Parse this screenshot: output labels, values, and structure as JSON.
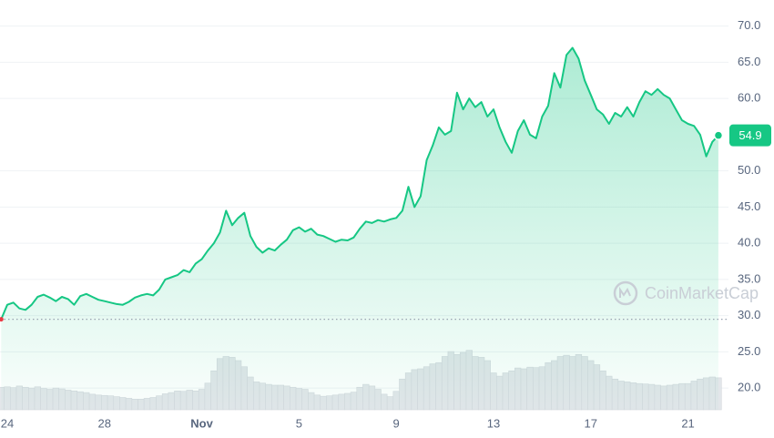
{
  "chart_data": {
    "type": "line",
    "watermark": "CoinMarketCap",
    "categories": [
      null,
      "24",
      null,
      null,
      null,
      null,
      null,
      null,
      null,
      null,
      null,
      null,
      null,
      null,
      null,
      null,
      null,
      "28",
      null,
      null,
      null,
      null,
      null,
      null,
      null,
      null,
      null,
      null,
      null,
      null,
      null,
      null,
      null,
      "Nov",
      null,
      null,
      null,
      null,
      null,
      null,
      null,
      null,
      null,
      null,
      null,
      null,
      null,
      null,
      null,
      "5",
      null,
      null,
      null,
      null,
      null,
      null,
      null,
      null,
      null,
      null,
      null,
      null,
      null,
      null,
      null,
      "9",
      null,
      null,
      null,
      null,
      null,
      null,
      null,
      null,
      null,
      null,
      null,
      null,
      null,
      null,
      null,
      "13",
      null,
      null,
      null,
      null,
      null,
      null,
      null,
      null,
      null,
      null,
      null,
      null,
      null,
      null,
      null,
      "17",
      null,
      null,
      null,
      null,
      null,
      null,
      null,
      null,
      null,
      null,
      null,
      null,
      null,
      null,
      null,
      "21",
      null,
      null,
      null,
      null,
      null
    ],
    "series": [
      {
        "color": "#16c784",
        "values": [
          29.5,
          31.5,
          31.8,
          31.0,
          30.8,
          31.5,
          32.6,
          32.9,
          32.5,
          32.0,
          32.6,
          32.3,
          31.5,
          32.7,
          33.0,
          32.6,
          32.2,
          32.0,
          31.8,
          31.6,
          31.5,
          31.9,
          32.5,
          32.8,
          33.0,
          32.8,
          33.6,
          35.0,
          35.3,
          35.6,
          36.3,
          36.0,
          37.2,
          37.8,
          39.0,
          40.0,
          41.5,
          44.5,
          42.5,
          43.5,
          44.2,
          41.0,
          39.5,
          38.7,
          39.3,
          39.0,
          39.8,
          40.5,
          41.8,
          42.2,
          41.6,
          42.0,
          41.2,
          41.0,
          40.6,
          40.2,
          40.5,
          40.4,
          40.8,
          42.0,
          43.0,
          42.8,
          43.2,
          43.0,
          43.3,
          43.5,
          44.5,
          47.8,
          45.0,
          46.5,
          51.5,
          53.5,
          56.0,
          55.0,
          55.5,
          60.8,
          58.5,
          60.0,
          58.8,
          59.5,
          57.5,
          58.5,
          56.0,
          54.0,
          52.5,
          55.5,
          57.0,
          55.0,
          54.5,
          57.5,
          59.0,
          63.5,
          61.5,
          66.0,
          67.0,
          65.5,
          62.5,
          60.5,
          58.5,
          57.8,
          56.5,
          58.0,
          57.5,
          58.8,
          57.5,
          59.5,
          61.0,
          60.5,
          61.3,
          60.5,
          60.0,
          58.5,
          57.0,
          56.5,
          56.2,
          55.0,
          52.0,
          54.0,
          54.9
        ]
      },
      {
        "type": "bar",
        "axis": "y2",
        "color": "#e3e6ea",
        "values": [
          5.5,
          5.6,
          5.4,
          5.8,
          5.5,
          5.3,
          5.6,
          5.2,
          5.0,
          5.3,
          5.1,
          4.8,
          4.6,
          4.4,
          4.2,
          3.8,
          3.6,
          3.5,
          3.4,
          3.2,
          3.0,
          2.8,
          2.6,
          2.6,
          2.8,
          3.0,
          3.4,
          3.9,
          4.2,
          4.6,
          4.5,
          4.8,
          4.6,
          5.0,
          6.5,
          9.5,
          12.5,
          13.0,
          12.8,
          12.0,
          10.5,
          8.0,
          6.8,
          6.5,
          6.2,
          6.0,
          6.0,
          5.8,
          5.5,
          5.2,
          5.0,
          4.2,
          3.6,
          3.3,
          3.4,
          3.6,
          3.8,
          4.0,
          4.3,
          5.5,
          6.2,
          5.8,
          5.0,
          3.8,
          3.2,
          4.5,
          7.5,
          9.0,
          9.8,
          10.0,
          10.5,
          11.2,
          11.5,
          13.0,
          14.2,
          13.5,
          14.0,
          14.5,
          13.0,
          12.8,
          12.0,
          9.0,
          8.2,
          9.0,
          9.5,
          10.2,
          10.0,
          10.4,
          10.3,
          10.5,
          11.5,
          12.0,
          13.0,
          13.3,
          13.0,
          13.5,
          13.0,
          12.0,
          11.0,
          9.5,
          8.2,
          7.5,
          7.0,
          6.8,
          6.6,
          6.4,
          6.3,
          6.2,
          6.0,
          5.8,
          6.0,
          6.2,
          6.4,
          6.4,
          7.0,
          7.5,
          7.8,
          8.0,
          7.8
        ]
      }
    ],
    "ylim": [
      17,
      73.6
    ],
    "yticks": [
      {
        "value": 20,
        "label": "20.0"
      },
      {
        "value": 25,
        "label": "25.0"
      },
      {
        "value": 30,
        "label": "30.0"
      },
      {
        "value": 35,
        "label": "35.0"
      },
      {
        "value": 40,
        "label": "40.0"
      },
      {
        "value": 45,
        "label": "45.0"
      },
      {
        "value": 50,
        "label": "50.0"
      },
      {
        "value": 60,
        "label": "60.0"
      },
      {
        "value": 65,
        "label": "65.0"
      },
      {
        "value": 70,
        "label": "70.0"
      }
    ],
    "y2lim": [
      0,
      100
    ],
    "grid": true
  }
}
